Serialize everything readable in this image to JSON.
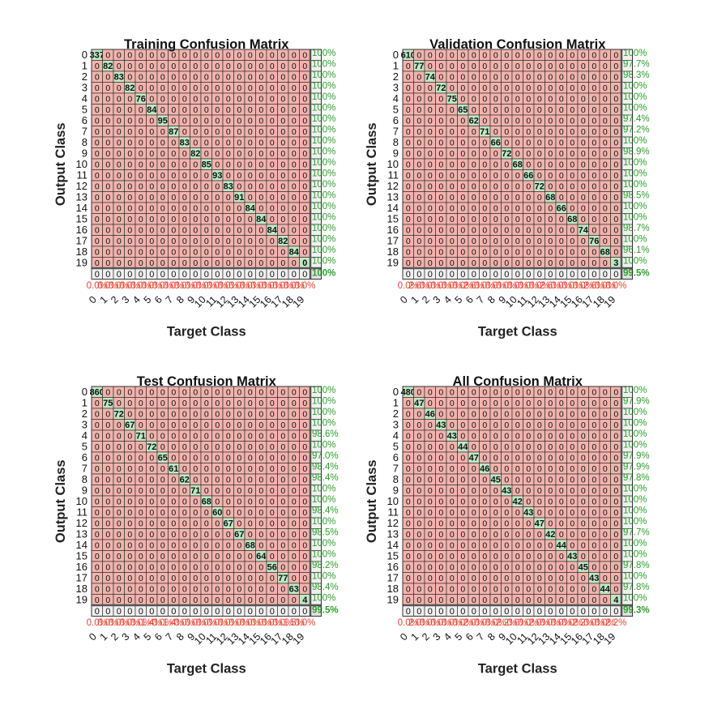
{
  "figure": {
    "colors": {
      "diag_fill": "#bfe8c4",
      "off_fill": "#f2b3ad",
      "summary_fill": "#f0f0f0",
      "correct_text": "#2ca02c",
      "error_text": "#e8412f",
      "grid": "#222222",
      "border": "#555555"
    }
  },
  "chart_data": [
    {
      "type": "heatmap",
      "title": "Training Confusion Matrix",
      "xlabel": "Target Class",
      "ylabel": "Output Class",
      "row_labels": [
        "0",
        "1",
        "2",
        "3",
        "4",
        "5",
        "6",
        "7",
        "8",
        "9",
        "10",
        "11",
        "12",
        "13",
        "14",
        "15",
        "16",
        "17",
        "18",
        "19"
      ],
      "col_labels": [
        "0",
        "1",
        "2",
        "3",
        "4",
        "5",
        "6",
        "7",
        "8",
        "9",
        "10",
        "11",
        "12",
        "13",
        "14",
        "15",
        "16",
        "17",
        "18",
        "19"
      ],
      "diagonal": [
        "337",
        "82",
        "83",
        "82",
        "76",
        "84",
        "95",
        "87",
        "83",
        "82",
        "85",
        "93",
        "83",
        "91",
        "84",
        "84",
        "84",
        "82",
        "84",
        "0"
      ],
      "row_pct": [
        "100%",
        "100%",
        "100%",
        "100%",
        "100%",
        "100%",
        "100%",
        "100%",
        "100%",
        "100%",
        "100%",
        "100%",
        "100%",
        "100%",
        "100%",
        "100%",
        "100%",
        "100%",
        "100%",
        "100%"
      ],
      "col_pct": [
        "0.0%",
        "0.0%",
        "0.0%",
        "0.0%",
        "0.0%",
        "0.0%",
        "0.0%",
        "0.0%",
        "0.0%",
        "0.0%",
        "0.0%",
        "0.0%",
        "0.0%",
        "0.0%",
        "0.0%",
        "0.0%",
        "0.0%",
        "0.0%",
        "0.0%",
        "0.0%"
      ],
      "overall": "100%"
    },
    {
      "type": "heatmap",
      "title": "Validation Confusion Matrix",
      "xlabel": "Target Class",
      "ylabel": "Output Class",
      "row_labels": [
        "0",
        "1",
        "2",
        "3",
        "4",
        "5",
        "6",
        "7",
        "8",
        "9",
        "10",
        "11",
        "12",
        "13",
        "14",
        "15",
        "16",
        "17",
        "18",
        "19"
      ],
      "col_labels": [
        "0",
        "1",
        "2",
        "3",
        "4",
        "5",
        "6",
        "7",
        "8",
        "9",
        "10",
        "11",
        "12",
        "13",
        "14",
        "15",
        "16",
        "17",
        "18",
        "19"
      ],
      "diagonal": [
        "610",
        "77",
        "74",
        "72",
        "75",
        "65",
        "62",
        "71",
        "66",
        "72",
        "68",
        "66",
        "72",
        "68",
        "66",
        "68",
        "74",
        "76",
        "68",
        "3"
      ],
      "row_pct": [
        "100%",
        "97.7%",
        "98.3%",
        "100%",
        "100%",
        "100%",
        "97.4%",
        "97.2%",
        "100%",
        "98.9%",
        "100%",
        "100%",
        "100%",
        "98.5%",
        "100%",
        "100%",
        "98.7%",
        "100%",
        "96.1%",
        "100%"
      ],
      "col_pct": [
        "0.0%",
        "2.6%",
        "0.0%",
        "0.0%",
        "0.0%",
        "0.0%",
        "2.6%",
        "0.0%",
        "0.0%",
        "0.0%",
        "0.0%",
        "0.0%",
        "0.0%",
        "2.6%",
        "0.0%",
        "0.0%",
        "0.0%",
        "2.6%",
        "0.0%",
        "0.0%"
      ],
      "overall": "99.5%"
    },
    {
      "type": "heatmap",
      "title": "Test Confusion Matrix",
      "xlabel": "Target Class",
      "ylabel": "Output Class",
      "row_labels": [
        "0",
        "1",
        "2",
        "3",
        "4",
        "5",
        "6",
        "7",
        "8",
        "9",
        "10",
        "11",
        "12",
        "13",
        "14",
        "15",
        "16",
        "17",
        "18",
        "19"
      ],
      "col_labels": [
        "0",
        "1",
        "2",
        "3",
        "4",
        "5",
        "6",
        "7",
        "8",
        "9",
        "10",
        "11",
        "12",
        "13",
        "14",
        "15",
        "16",
        "17",
        "18",
        "19"
      ],
      "diagonal": [
        "860",
        "75",
        "72",
        "67",
        "71",
        "72",
        "65",
        "61",
        "62",
        "71",
        "68",
        "60",
        "67",
        "67",
        "68",
        "64",
        "56",
        "77",
        "63",
        "4"
      ],
      "row_pct": [
        "100%",
        "100%",
        "100%",
        "100%",
        "98.6%",
        "100%",
        "97.0%",
        "98.4%",
        "98.4%",
        "100%",
        "100%",
        "98.4%",
        "100%",
        "98.5%",
        "100%",
        "100%",
        "98.2%",
        "100%",
        "98.4%",
        "100%"
      ],
      "col_pct": [
        "0.0%",
        "0.0%",
        "0.0%",
        "0.0%",
        "0.0%",
        "1.4%",
        "0.0%",
        "1.4%",
        "0.0%",
        "0.0%",
        "0.0%",
        "0.0%",
        "0.0%",
        "0.0%",
        "0.0%",
        "0.0%",
        "0.0%",
        "0.0%",
        "1.5%",
        "0.0%"
      ],
      "overall": "99.5%"
    },
    {
      "type": "heatmap",
      "title": "All Confusion Matrix",
      "xlabel": "Target Class",
      "ylabel": "Output Class",
      "row_labels": [
        "0",
        "1",
        "2",
        "3",
        "4",
        "5",
        "6",
        "7",
        "8",
        "9",
        "10",
        "11",
        "12",
        "13",
        "14",
        "15",
        "16",
        "17",
        "18",
        "19"
      ],
      "col_labels": [
        "0",
        "1",
        "2",
        "3",
        "4",
        "5",
        "6",
        "7",
        "8",
        "9",
        "10",
        "11",
        "12",
        "13",
        "14",
        "15",
        "16",
        "17",
        "18",
        "19"
      ],
      "diagonal": [
        "480",
        "47",
        "46",
        "43",
        "43",
        "44",
        "47",
        "46",
        "45",
        "43",
        "42",
        "43",
        "47",
        "42",
        "44",
        "43",
        "45",
        "43",
        "44",
        "4"
      ],
      "row_pct": [
        "100%",
        "97.9%",
        "100%",
        "100%",
        "100%",
        "100%",
        "97.9%",
        "97.9%",
        "97.8%",
        "100%",
        "100%",
        "100%",
        "100%",
        "97.7%",
        "100%",
        "100%",
        "97.8%",
        "100%",
        "97.8%",
        "100%"
      ],
      "col_pct": [
        "0.0%",
        "2.0%",
        "0.0%",
        "0.0%",
        "0.0%",
        "0.0%",
        "2.0%",
        "0.0%",
        "0.0%",
        "2.2%",
        "0.0%",
        "0.0%",
        "2.0%",
        "0.0%",
        "0.0%",
        "0.0%",
        "2.2%",
        "0.0%",
        "0.0%",
        "2.2%"
      ],
      "overall": "99.3%"
    }
  ]
}
